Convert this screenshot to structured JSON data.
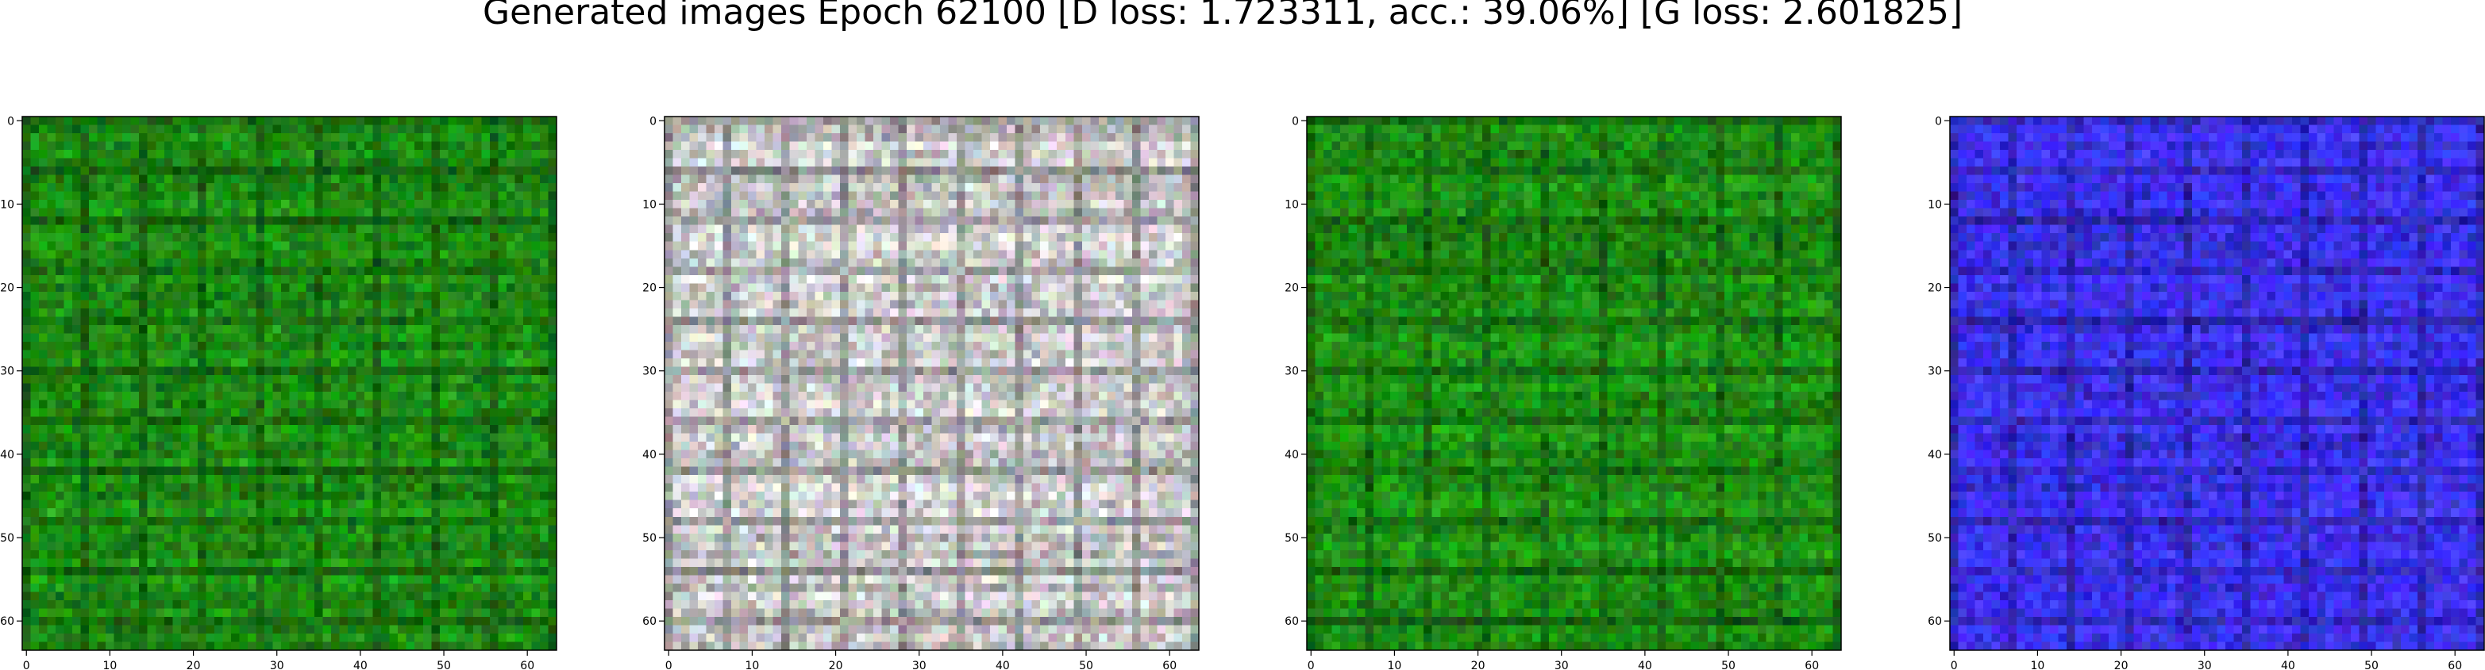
{
  "figure": {
    "title": "Generated images Epoch 62100 [D loss: 1.723311, acc.: 39.06%] [G loss: 2.601825]"
  },
  "chart_data": [
    {
      "type": "heatmap",
      "description": "generated 64x64 RGB image",
      "dominant_color": "#1e8c14",
      "xlim": [
        0,
        63
      ],
      "ylim": [
        63,
        0
      ],
      "xticks": [
        0,
        10,
        20,
        30,
        40,
        50,
        60
      ],
      "yticks": [
        0,
        10,
        20,
        30,
        40,
        50,
        60
      ]
    },
    {
      "type": "heatmap",
      "description": "generated 64x64 RGB image",
      "dominant_color": "#c8c8c8",
      "xlim": [
        0,
        63
      ],
      "ylim": [
        63,
        0
      ],
      "xticks": [
        0,
        10,
        20,
        30,
        40,
        50,
        60
      ],
      "yticks": [
        0,
        10,
        20,
        30,
        40,
        50,
        60
      ]
    },
    {
      "type": "heatmap",
      "description": "generated 64x64 RGB image",
      "dominant_color": "#1e8c14",
      "xlim": [
        0,
        63
      ],
      "ylim": [
        63,
        0
      ],
      "xticks": [
        0,
        10,
        20,
        30,
        40,
        50,
        60
      ],
      "yticks": [
        0,
        10,
        20,
        30,
        40,
        50,
        60
      ]
    },
    {
      "type": "heatmap",
      "description": "generated 64x64 RGB image",
      "dominant_color": "#3c32f0",
      "xlim": [
        0,
        63
      ],
      "ylim": [
        63,
        0
      ],
      "xticks": [
        0,
        10,
        20,
        30,
        40,
        50,
        60
      ],
      "yticks": [
        0,
        10,
        20,
        30,
        40,
        50,
        60
      ]
    }
  ]
}
